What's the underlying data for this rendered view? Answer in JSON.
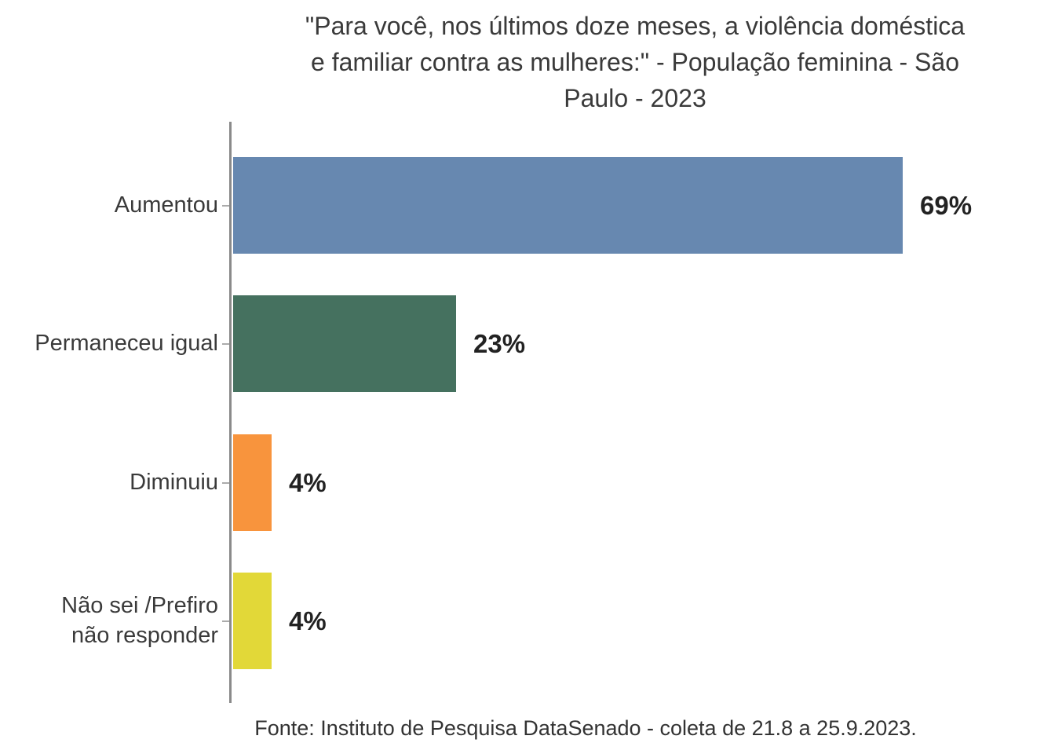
{
  "chart_data": {
    "type": "bar",
    "orientation": "horizontal",
    "title": "\"Para você, nos últimos doze meses, a violência doméstica e familiar contra as mulheres:\" - População feminina - São Paulo - 2023",
    "categories": [
      "Aumentou",
      "Permaneceu igual",
      "Diminuiu",
      "Não sei /Prefiro não responder"
    ],
    "values": [
      69,
      23,
      4,
      4
    ],
    "value_labels": [
      "69%",
      "23%",
      "4%",
      "4%"
    ],
    "unit": "%",
    "xlim": [
      0,
      100
    ],
    "grid": false,
    "legend": false,
    "colors": [
      "#6788B0",
      "#45715F",
      "#F8943D",
      "#E2D838"
    ]
  },
  "display": {
    "title_lines": [
      "\"Para você, nos últimos doze meses, a violência doméstica",
      "e familiar contra as mulheres:\" - População feminina - São",
      "Paulo - 2023"
    ],
    "category_labels": [
      "Aumentou",
      "Permaneceu igual",
      "Diminuiu",
      "Não sei /Prefiro\nnão responder"
    ]
  },
  "footer": {
    "source": "Fonte: Instituto de Pesquisa DataSenado - coleta de 21.8 a 25.9.2023."
  },
  "style": {
    "text_color": "#3A3A3A",
    "value_color": "#222222",
    "axis_color": "#8A8A8A",
    "tick_color": "#ABABAB",
    "background": "#FFFFFF"
  }
}
